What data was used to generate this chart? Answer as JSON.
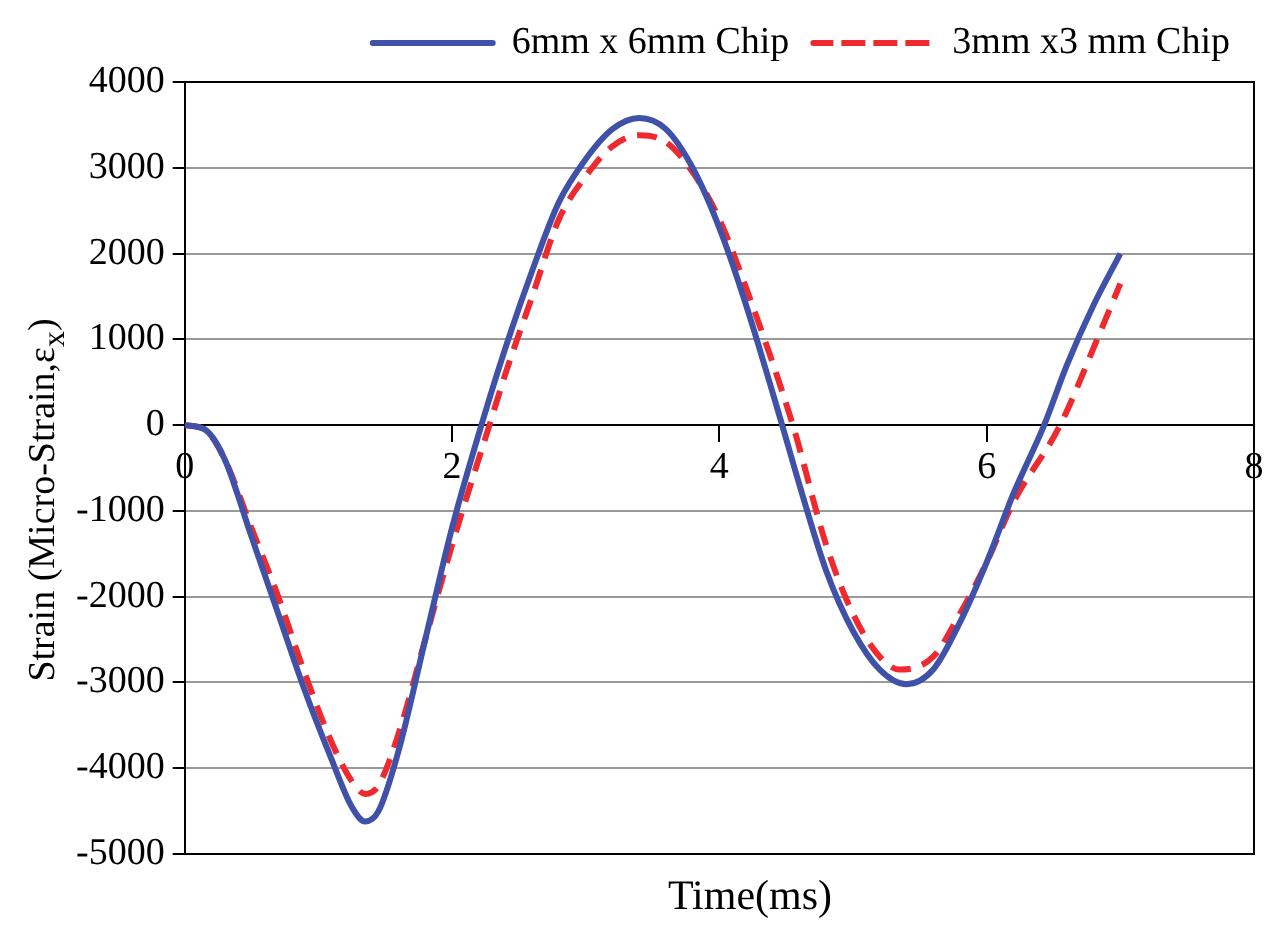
{
  "chart_data": {
    "type": "line",
    "xlabel": "Time(ms)",
    "ylabel": "Strain (Micro-Strain,ε$_{x}$)",
    "xlim": [
      0,
      8
    ],
    "xticks": [
      0,
      2,
      4,
      6,
      8
    ],
    "ylim": [
      -5000,
      4000
    ],
    "yticks": [
      -5000,
      -4000,
      -3000,
      -2000,
      -1000,
      0,
      1000,
      2000,
      3000,
      4000
    ],
    "grid": "y",
    "legend": "top",
    "marker": "none",
    "series": [
      {
        "name": "6mm x 6mm Chip",
        "color": "#3f51a8",
        "line_style": "solid",
        "x": [
          0,
          0.15,
          0.3,
          0.5,
          0.7,
          0.9,
          1.1,
          1.25,
          1.35,
          1.45,
          1.6,
          1.8,
          2.0,
          2.22,
          2.4,
          2.6,
          2.8,
          3.0,
          3.2,
          3.4,
          3.6,
          3.8,
          4.0,
          4.2,
          4.47,
          4.6,
          4.8,
          5.0,
          5.2,
          5.4,
          5.6,
          5.8,
          6.0,
          6.2,
          6.43,
          6.6,
          6.8,
          7.0
        ],
        "values": [
          0,
          -50,
          -400,
          -1300,
          -2200,
          -3100,
          -3900,
          -4450,
          -4620,
          -4500,
          -3800,
          -2500,
          -1200,
          0,
          900,
          1800,
          2600,
          3100,
          3450,
          3580,
          3450,
          3000,
          2300,
          1400,
          0,
          -700,
          -1700,
          -2400,
          -2850,
          -3020,
          -2850,
          -2300,
          -1600,
          -800,
          0,
          700,
          1400,
          2000
        ]
      },
      {
        "name": "3mm x3 mm Chip",
        "color": "#ee2a2e",
        "line_style": "dashed",
        "x": [
          0,
          0.15,
          0.3,
          0.5,
          0.7,
          0.9,
          1.1,
          1.25,
          1.35,
          1.45,
          1.6,
          1.8,
          2.0,
          2.28,
          2.4,
          2.6,
          2.8,
          3.0,
          3.2,
          3.4,
          3.6,
          3.8,
          4.0,
          4.2,
          4.55,
          4.8,
          5.0,
          5.2,
          5.35,
          5.6,
          5.8,
          6.0,
          6.2,
          6.55,
          6.8,
          7.0
        ],
        "values": [
          0,
          -50,
          -400,
          -1200,
          -2000,
          -2900,
          -3700,
          -4150,
          -4300,
          -4200,
          -3600,
          -2500,
          -1400,
          0,
          600,
          1500,
          2400,
          2900,
          3250,
          3380,
          3300,
          2950,
          2400,
          1600,
          0,
          -1400,
          -2200,
          -2700,
          -2850,
          -2700,
          -2200,
          -1600,
          -900,
          0,
          900,
          1650
        ]
      }
    ]
  }
}
